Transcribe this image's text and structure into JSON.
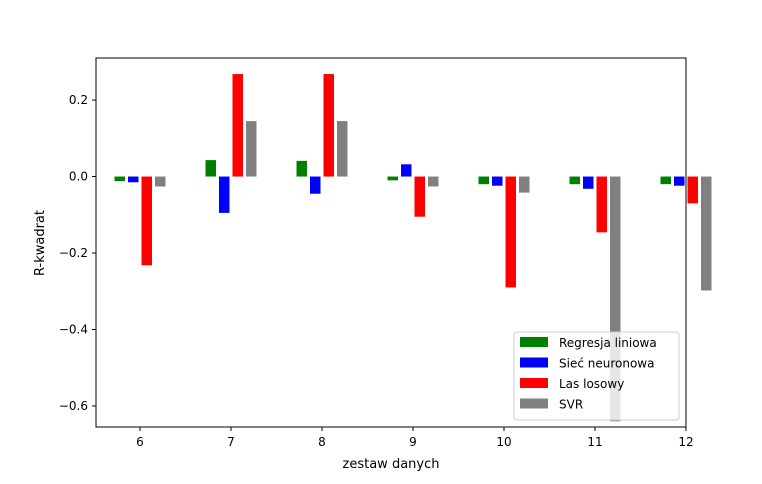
{
  "chart_data": {
    "type": "bar",
    "title": "",
    "xlabel": "zestaw danych",
    "ylabel": "R-kwadrat",
    "categories": [
      "6",
      "7",
      "8",
      "9",
      "10",
      "11",
      "12"
    ],
    "ylim": [
      -0.655,
      0.31
    ],
    "yticks": [
      0.2,
      0.0,
      -0.2,
      -0.4,
      -0.6
    ],
    "ytick_labels": [
      "0.2",
      "0.0",
      "−0.2",
      "−0.4",
      "−0.6"
    ],
    "grid": false,
    "legend_position": "bottom-right",
    "series": [
      {
        "name": "Regresja liniowa",
        "color": "#008000",
        "values": [
          -0.012,
          0.043,
          0.041,
          -0.01,
          -0.02,
          -0.02,
          -0.02
        ]
      },
      {
        "name": "Sieć neuronowa",
        "color": "#0000ff",
        "values": [
          -0.015,
          -0.095,
          -0.045,
          0.032,
          -0.024,
          -0.032,
          -0.024
        ]
      },
      {
        "name": "Las losowy",
        "color": "#ff0000",
        "values": [
          -0.232,
          0.268,
          0.268,
          -0.105,
          -0.29,
          -0.146,
          -0.07
        ]
      },
      {
        "name": "SVR",
        "color": "#808080",
        "values": [
          -0.026,
          0.145,
          0.145,
          -0.026,
          -0.042,
          -0.64,
          -0.298
        ]
      }
    ]
  }
}
